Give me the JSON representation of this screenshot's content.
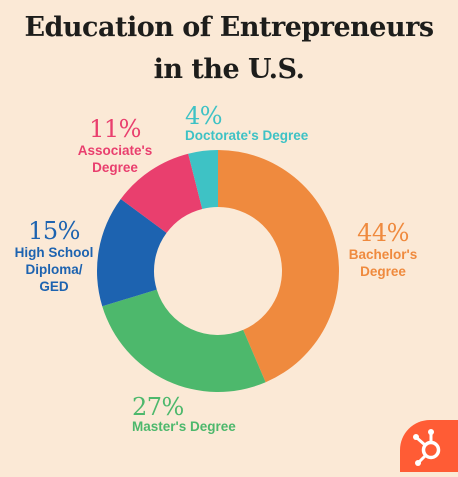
{
  "header": {
    "title_line1": "Education of Entrepreneurs",
    "title_line2": "in the U.S."
  },
  "chart_data": {
    "type": "pie",
    "subtype": "donut",
    "title": "Education of Entrepreneurs in the U.S.",
    "slices": [
      {
        "name": "Bachelor's Degree",
        "value": 44,
        "label_pct": "44%",
        "label_lines": [
          "Bachelor's",
          "Degree"
        ],
        "color": "#ef8a3e"
      },
      {
        "name": "Master's Degree",
        "value": 27,
        "label_pct": "27%",
        "label_lines": [
          "Master's Degree"
        ],
        "color": "#4db86c"
      },
      {
        "name": "High School Diploma/GED",
        "value": 15,
        "label_pct": "15%",
        "label_lines": [
          "High School",
          "Diploma/",
          "GED"
        ],
        "color": "#1d63b0"
      },
      {
        "name": "Associate's Degree",
        "value": 11,
        "label_pct": "11%",
        "label_lines": [
          "Associate's",
          "Degree"
        ],
        "color": "#e93f6e"
      },
      {
        "name": "Doctorate's Degree",
        "value": 4,
        "label_pct": "4%",
        "label_lines": [
          "Doctorate's Degree"
        ],
        "color": "#3ec2c5"
      }
    ]
  },
  "brand": {
    "logo_icon": "hubspot-sprocket-icon",
    "logo_color": "#ff5c35"
  }
}
